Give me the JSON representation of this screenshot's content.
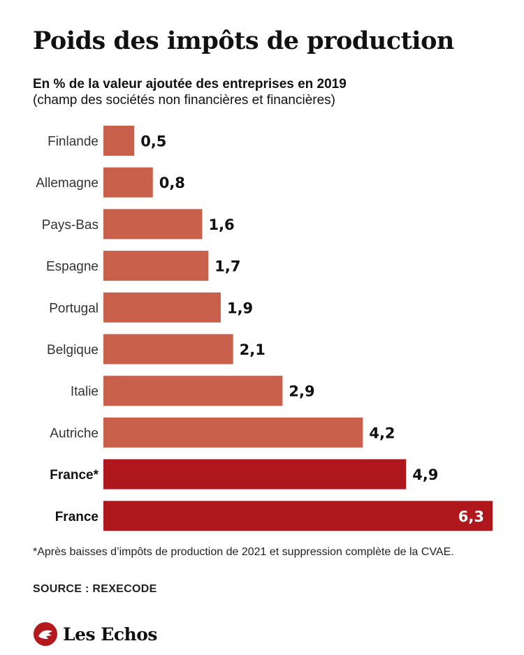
{
  "header": {
    "title": "Poids des impôts de production",
    "subtitle_line1": "En % de la valeur ajoutée des entreprises en 2019",
    "subtitle_line2": "(champ des sociétés non financières et financières)"
  },
  "chart_data": {
    "type": "bar",
    "orientation": "horizontal",
    "title": "Poids des impôts de production",
    "subtitle": "En % de la valeur ajoutée des entreprises en 2019 (champ des sociétés non financières et financières)",
    "categories": [
      "Finlande",
      "Allemagne",
      "Pays-Bas",
      "Espagne",
      "Portugal",
      "Belgique",
      "Italie",
      "Autriche",
      "France*",
      "France"
    ],
    "values": [
      0.5,
      0.8,
      1.6,
      1.7,
      1.9,
      2.1,
      2.9,
      4.2,
      4.9,
      6.3
    ],
    "value_labels": [
      "0,5",
      "0,8",
      "1,6",
      "1,7",
      "1,9",
      "2,1",
      "2,9",
      "4,2",
      "4,9",
      "6,3"
    ],
    "highlighted": [
      false,
      false,
      false,
      false,
      false,
      false,
      false,
      false,
      true,
      true
    ],
    "xlim": [
      0,
      6.3
    ],
    "grid": false,
    "legend": "none",
    "colors": {
      "default": "#c9604b",
      "highlight": "#b0171d",
      "label_inside": "#ffffff",
      "label_outside": "#111111",
      "category": "#333333"
    }
  },
  "footer": {
    "footnote": "*Après baisses d’impôts de production de 2021 et suppression complète de la CVAE.",
    "source": "SOURCE : REXECODE",
    "brand": "Les Echos",
    "brand_icon": "les-echos-logo-icon"
  }
}
